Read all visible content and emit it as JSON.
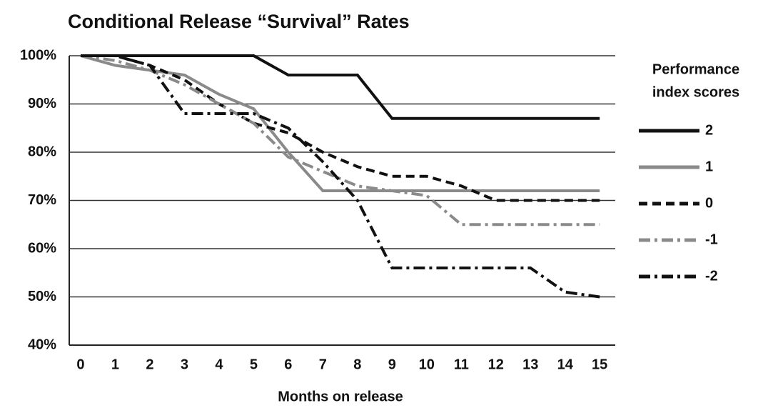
{
  "chart_data": {
    "type": "line",
    "title": "Conditional Release “Survival” Rates",
    "xlabel": "Months on release",
    "legend_title": [
      "Performance",
      "index scores"
    ],
    "legend": "right",
    "grid": true,
    "x": [
      0,
      1,
      2,
      3,
      4,
      5,
      6,
      7,
      8,
      9,
      10,
      11,
      12,
      13,
      14,
      15
    ],
    "xlim": [
      -0.33,
      15.45
    ],
    "xticks": [
      0,
      1,
      2,
      3,
      4,
      5,
      6,
      7,
      8,
      9,
      10,
      11,
      12,
      13,
      14,
      15
    ],
    "ylim": [
      40,
      100
    ],
    "yticks": [
      {
        "value": 40,
        "label": "40%"
      },
      {
        "value": 50,
        "label": "50%"
      },
      {
        "value": 60,
        "label": "60%"
      },
      {
        "value": 70,
        "label": "70%"
      },
      {
        "value": 80,
        "label": "80%"
      },
      {
        "value": 90,
        "label": "90%"
      },
      {
        "value": 100,
        "label": "100%"
      }
    ],
    "series": [
      {
        "name": "2",
        "color": "#111111",
        "dash": "solid",
        "values": [
          100,
          100,
          100,
          100,
          100,
          100,
          96,
          96,
          96,
          87,
          87,
          87,
          87,
          87,
          87,
          87
        ]
      },
      {
        "name": "1",
        "color": "#8a8a8a",
        "dash": "solid",
        "values": [
          100,
          98,
          97,
          96,
          92,
          89,
          80,
          72,
          72,
          72,
          72,
          72,
          72,
          72,
          72,
          72
        ]
      },
      {
        "name": "0",
        "color": "#111111",
        "dash": "dashed",
        "values": [
          100,
          100,
          98,
          95,
          90,
          86,
          84,
          80,
          77,
          75,
          75,
          73,
          70,
          70,
          70,
          70
        ]
      },
      {
        "name": "-1",
        "color": "#8a8a8a",
        "dash": "dashdot",
        "values": [
          100,
          99,
          97,
          94,
          90,
          86,
          79,
          76,
          73,
          72,
          71,
          65,
          65,
          65,
          65,
          65
        ]
      },
      {
        "name": "-2",
        "color": "#111111",
        "dash": "dashdot",
        "values": [
          100,
          100,
          98,
          88,
          88,
          88,
          85,
          78,
          70,
          56,
          56,
          56,
          56,
          56,
          51,
          50
        ]
      }
    ]
  }
}
